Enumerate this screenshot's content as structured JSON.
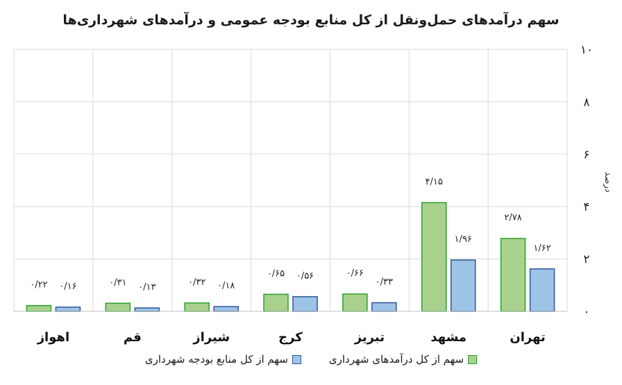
{
  "chart_data": {
    "type": "bar",
    "title": "سهم درآمدهای حمل‌ونقل از کل منابع بودجه عمومی و درآمدهای شهرداری‌ها",
    "ylabel": "درصد",
    "xlabel": "",
    "ylim": [
      0,
      10
    ],
    "yticks": [
      0,
      2,
      4,
      6,
      8,
      10
    ],
    "ytick_labels": [
      "۰",
      "۲",
      "۴",
      "۶",
      "۸",
      "۱۰"
    ],
    "grid": true,
    "legend_position": "bottom",
    "categories": [
      "اهواز",
      "قم",
      "شیراز",
      "کرج",
      "تبریز",
      "مشهد",
      "تهران"
    ],
    "series": [
      {
        "name": "سهم از کل درآمدهای شهرداری",
        "color": "#a9d18e",
        "border": "#2aa02a",
        "values": [
          0.22,
          0.31,
          0.32,
          0.65,
          0.66,
          4.15,
          2.78
        ],
        "labels": [
          "۰/۲۲",
          "۰/۳۱",
          "۰/۳۲",
          "۰/۶۵",
          "۰/۶۶",
          "۴/۱۵",
          "۲/۷۸"
        ]
      },
      {
        "name": "سهم از کل منابع بودجه شهرداری",
        "color": "#9dc3e6",
        "border": "#2f5597",
        "values": [
          0.16,
          0.13,
          0.18,
          0.56,
          0.33,
          1.96,
          1.62
        ],
        "labels": [
          "۰/۱۶",
          "۰/۱۳",
          "۰/۱۸",
          "۰/۵۶",
          "۰/۳۳",
          "۱/۹۶",
          "۱/۶۲"
        ]
      }
    ]
  }
}
